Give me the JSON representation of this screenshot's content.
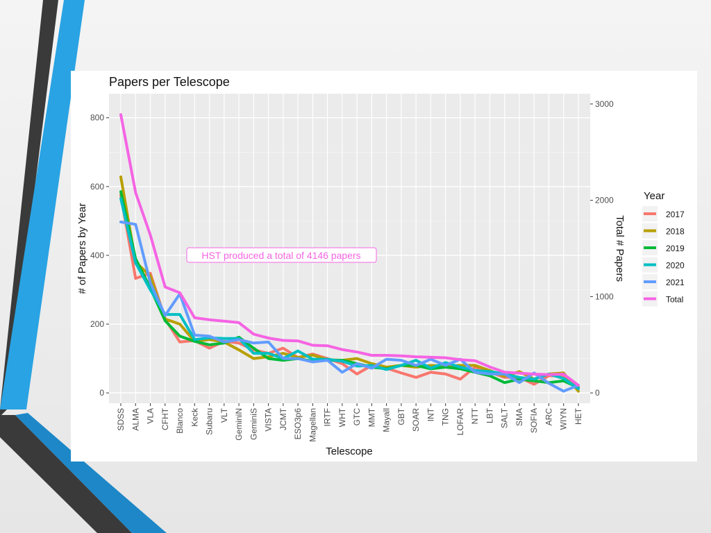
{
  "chart_data": {
    "type": "line",
    "title": "Papers per Telescope",
    "xlabel": "Telescope",
    "ylabel": "# of Papers by Year",
    "y2label": "Total # Papers",
    "ylim": [
      -30,
      870
    ],
    "y2lim": [
      -107,
      3107
    ],
    "yticks": [
      0,
      200,
      400,
      600,
      800
    ],
    "y2ticks": [
      0,
      1000,
      2000,
      3000
    ],
    "grid": true,
    "legend_position": "right",
    "legend_title": "Year",
    "annotation": "HST produced a total of  4146 papers",
    "categories": [
      "SDSS",
      "ALMA",
      "VLA",
      "CFHT",
      "Blanco",
      "Keck",
      "Subaru",
      "VLT",
      "GeminiN",
      "GeminiS",
      "VISTA",
      "JCMT",
      "ESO3p6",
      "Magellan",
      "IRTF",
      "WHT",
      "GTC",
      "MMT",
      "Mayall",
      "GBT",
      "SOAR",
      "INT",
      "TNG",
      "LOFAR",
      "NTT",
      "LBT",
      "SALT",
      "SMA",
      "SOFIA",
      "ARC",
      "WIYN",
      "HET"
    ],
    "series": [
      {
        "name": "2017",
        "color": "#F8766D",
        "axis": "left",
        "values": [
          575,
          333,
          348,
          215,
          148,
          152,
          130,
          150,
          145,
          125,
          115,
          130,
          103,
          113,
          100,
          85,
          55,
          80,
          72,
          58,
          45,
          60,
          55,
          40,
          75,
          60,
          45,
          45,
          25,
          50,
          50,
          15
        ]
      },
      {
        "name": "2018",
        "color": "#B79F00",
        "axis": "left",
        "values": [
          628,
          380,
          340,
          215,
          200,
          150,
          155,
          148,
          125,
          100,
          105,
          115,
          103,
          110,
          97,
          95,
          100,
          85,
          75,
          80,
          75,
          80,
          78,
          80,
          80,
          65,
          48,
          62,
          40,
          55,
          58,
          5
        ]
      },
      {
        "name": "2019",
        "color": "#00BA38",
        "axis": "left",
        "values": [
          585,
          390,
          305,
          210,
          165,
          150,
          140,
          145,
          162,
          130,
          100,
          95,
          100,
          92,
          95,
          95,
          85,
          75,
          70,
          80,
          80,
          70,
          75,
          70,
          60,
          50,
          30,
          40,
          35,
          30,
          35,
          15
        ]
      },
      {
        "name": "2020",
        "color": "#00BFC4",
        "axis": "left",
        "values": [
          565,
          378,
          300,
          228,
          228,
          155,
          160,
          158,
          158,
          115,
          115,
          100,
          122,
          98,
          98,
          92,
          78,
          80,
          68,
          80,
          95,
          72,
          88,
          75,
          65,
          62,
          55,
          45,
          40,
          55,
          42,
          12
        ]
      },
      {
        "name": "2021",
        "color": "#619CFF",
        "axis": "left",
        "values": [
          497,
          490,
          320,
          225,
          288,
          168,
          165,
          148,
          155,
          145,
          148,
          100,
          100,
          90,
          95,
          60,
          85,
          72,
          98,
          95,
          80,
          98,
          80,
          98,
          60,
          55,
          55,
          30,
          58,
          28,
          5,
          22
        ]
      },
      {
        "name": "Total",
        "color": "#F564E3",
        "axis": "right",
        "values": [
          2890,
          2080,
          1640,
          1100,
          1040,
          780,
          760,
          745,
          730,
          610,
          570,
          545,
          540,
          495,
          490,
          450,
          425,
          390,
          390,
          385,
          375,
          370,
          365,
          345,
          335,
          270,
          215,
          205,
          195,
          190,
          195,
          80
        ]
      }
    ]
  }
}
